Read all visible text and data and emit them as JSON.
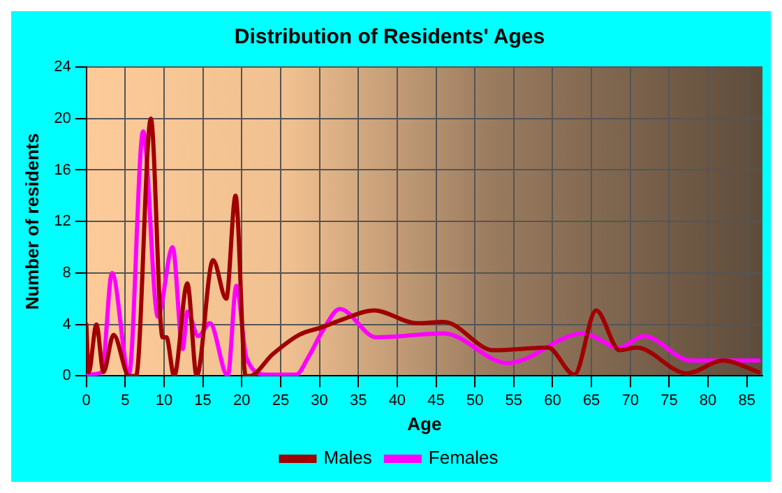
{
  "chart_data": {
    "type": "line",
    "title": "Distribution of Residents' Ages",
    "xlabel": "Age",
    "ylabel": "Number of residents",
    "xlim": [
      0,
      87
    ],
    "xticks": [
      0,
      5,
      10,
      15,
      20,
      25,
      30,
      35,
      40,
      45,
      50,
      55,
      60,
      65,
      70,
      75,
      80,
      85
    ],
    "ylim": [
      0,
      24
    ],
    "yticks": [
      0,
      4,
      8,
      12,
      16,
      20,
      24
    ],
    "grid": true,
    "legend": "bottom",
    "marker": "none",
    "line_style": "solid",
    "series": [
      {
        "name": "Males",
        "color": "#a00000",
        "x": [
          0,
          0.3,
          1.3,
          2.2,
          3.5,
          5.5,
          6.4,
          8.3,
          9.8,
          10.3,
          11.3,
          13,
          14.2,
          16.3,
          18,
          19.2,
          20.5,
          21,
          24,
          27.4,
          30.4,
          33,
          37,
          42.5,
          46,
          52.4,
          59.4,
          62.8,
          65.6,
          68.6,
          70.8,
          77.3,
          81.9,
          86.5
        ],
        "values": [
          4,
          0.3,
          4,
          0.3,
          3.2,
          0,
          0,
          20,
          3,
          3,
          0,
          7.2,
          0,
          9,
          6,
          14,
          0,
          0,
          1.7,
          3.2,
          3.8,
          4.4,
          5.1,
          4.1,
          4.2,
          2,
          2.2,
          0.1,
          5.1,
          2,
          2.2,
          0.2,
          1.2,
          0.3
        ]
      },
      {
        "name": "Females",
        "color": "#ff00ff",
        "x": [
          0,
          2,
          3.3,
          5.5,
          7.3,
          9.2,
          11.1,
          12.4,
          13,
          14.4,
          15.9,
          18.2,
          19.3,
          20.6,
          23.2,
          27,
          28.6,
          30.4,
          32.6,
          37.3,
          46,
          54.2,
          63.9,
          68.6,
          71.7,
          77.8,
          86.5
        ],
        "values": [
          0.1,
          0.3,
          8,
          0.2,
          19,
          4.6,
          10,
          2.1,
          5,
          3.1,
          4.1,
          0,
          7,
          1.4,
          0.1,
          0.1,
          1.5,
          3.5,
          5.2,
          3,
          3.3,
          1,
          3.3,
          2.2,
          3.1,
          1.2,
          1.2
        ]
      }
    ]
  }
}
